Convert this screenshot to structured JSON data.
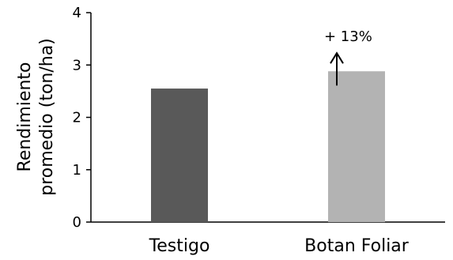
{
  "chart_data": {
    "type": "bar",
    "categories": [
      "Testigo",
      "Botan Foliar"
    ],
    "values": [
      2.55,
      2.88
    ],
    "colors": [
      "#595959",
      "#b3b3b3"
    ],
    "ylabel_lines": [
      "Rendimiento",
      "promedio (ton/ha)"
    ],
    "ylim": [
      0,
      4
    ],
    "yticks": [
      0,
      1,
      2,
      3,
      4
    ],
    "grid": false,
    "annotation": {
      "text": "+ 13%",
      "category": "Botan Foliar",
      "arrow": "up"
    }
  }
}
